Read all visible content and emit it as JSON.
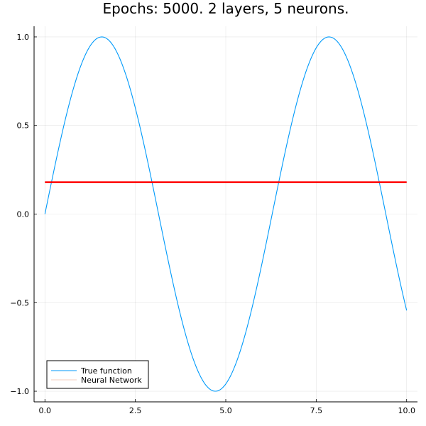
{
  "chart_data": {
    "type": "line",
    "title": "Epochs: 5000. 2 layers, 5 neurons.",
    "xlabel": "",
    "ylabel": "",
    "xlim": [
      -0.3,
      10.3
    ],
    "ylim": [
      -1.06,
      1.06
    ],
    "grid": true,
    "legend_position": "bottom-left",
    "xticks": [
      0.0,
      2.5,
      5.0,
      7.5,
      10.0
    ],
    "xtick_labels": [
      "0.0",
      "2.5",
      "5.0",
      "7.5",
      "10.0"
    ],
    "yticks": [
      -1.0,
      -0.5,
      0.0,
      0.5,
      1.0
    ],
    "ytick_labels": [
      "−1.0",
      "−0.5",
      "0.0",
      "0.5",
      "1.0"
    ],
    "series": [
      {
        "name": "True function",
        "function": "sin(x)",
        "x": [
          0,
          0.5,
          1.0,
          1.5,
          1.5708,
          2.0,
          2.5,
          3.0,
          3.5,
          4.0,
          4.5,
          4.7124,
          5.0,
          5.5,
          6.0,
          6.5,
          7.0,
          7.5,
          7.854,
          8.0,
          8.5,
          9.0,
          9.5,
          10.0
        ],
        "y": [
          0,
          0.479,
          0.841,
          0.997,
          1.0,
          0.909,
          0.598,
          0.141,
          -0.351,
          -0.757,
          -0.978,
          -1.0,
          -0.959,
          -0.706,
          -0.279,
          0.215,
          0.657,
          0.938,
          1.0,
          0.989,
          0.798,
          0.412,
          -0.075,
          -0.544
        ],
        "color": "#009AFA"
      },
      {
        "name": "Neural Network",
        "x": [
          0,
          10.0
        ],
        "y": [
          0.18,
          0.18
        ],
        "color": "#E26F46"
      }
    ],
    "overlay_lines": [
      {
        "y": 0.18,
        "color": "#FF0000"
      }
    ]
  }
}
